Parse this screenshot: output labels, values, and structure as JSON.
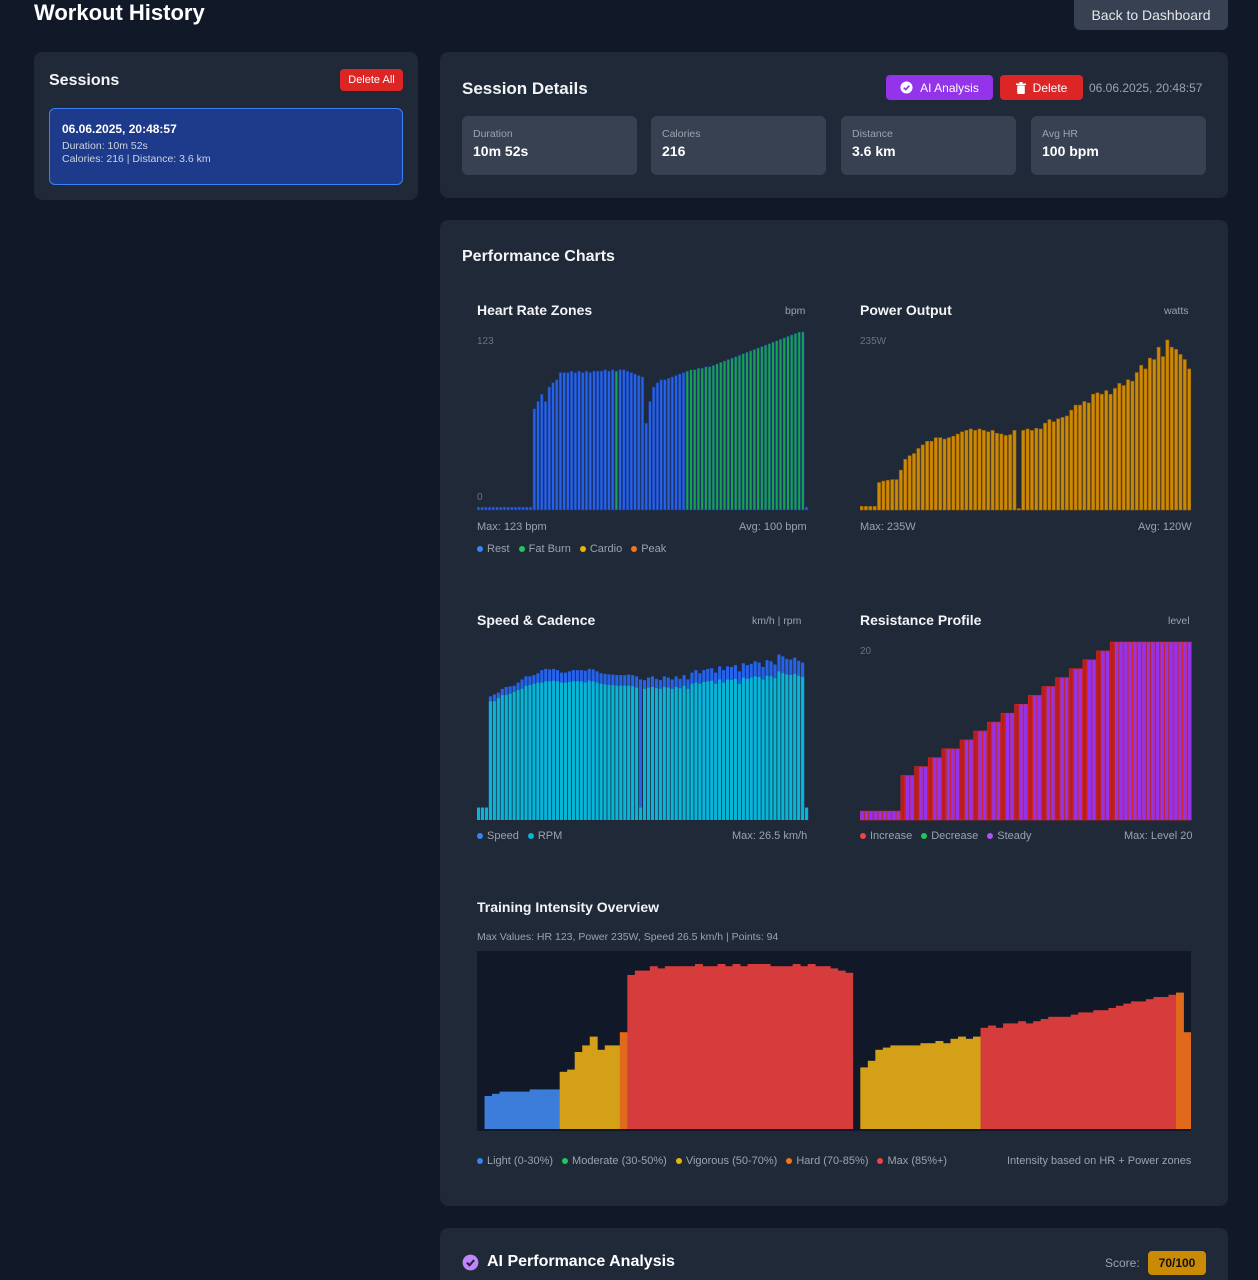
{
  "header": {
    "title": "Workout History",
    "back_label": "Back to Dashboard"
  },
  "sessions": {
    "title": "Sessions",
    "delete_all_label": "Delete All",
    "items": [
      {
        "date": "06.06.2025, 20:48:57",
        "duration": "Duration: 10m 52s",
        "summary": "Calories: 216 | Distance: 3.6 km"
      }
    ]
  },
  "details": {
    "title": "Session Details",
    "ai_label": "AI Analysis",
    "delete_label": "Delete",
    "timestamp": "06.06.2025, 20:48:57",
    "stats": [
      {
        "label": "Duration",
        "value": "10m 52s"
      },
      {
        "label": "Calories",
        "value": "216"
      },
      {
        "label": "Distance",
        "value": "3.6 km"
      },
      {
        "label": "Avg HR",
        "value": "100 bpm"
      }
    ]
  },
  "performance": {
    "title": "Performance Charts",
    "hr": {
      "title": "Heart Rate Zones",
      "unit": "bpm",
      "max_label": "Max: 123 bpm",
      "avg_label": "Avg: 100 bpm",
      "legend": [
        "Rest",
        "Fat Burn",
        "Cardio",
        "Peak"
      ]
    },
    "power": {
      "title": "Power Output",
      "unit": "watts",
      "max_label": "Max: 235W",
      "avg_label": "Avg: 120W"
    },
    "speed": {
      "title": "Speed & Cadence",
      "unit": "km/h | rpm",
      "max_label": "Max: 26.5 km/h",
      "legend": [
        "Speed",
        "RPM"
      ]
    },
    "resistance": {
      "title": "Resistance Profile",
      "unit": "level",
      "max_label": "Max: Level 20",
      "legend": [
        "Increase",
        "Decrease",
        "Steady"
      ]
    },
    "intensity": {
      "title": "Training Intensity Overview",
      "subtitle": "Max Values: HR 123, Power 235W, Speed 26.5 km/h | Points: 94",
      "legend": [
        "Light (0-30%)",
        "Moderate (30-50%)",
        "Vigorous (50-70%)",
        "Hard (70-85%)",
        "Max (85%+)"
      ],
      "note": "Intensity based on HR + Power zones"
    }
  },
  "ai": {
    "title": "AI Performance Analysis",
    "score_label": "Score:",
    "score_value": "70/100"
  },
  "colors": {
    "rest": "#3b82f6",
    "fatburn": "#22c55e",
    "cardio": "#eab308",
    "peak": "#f97316",
    "power": "#ca8a04",
    "speed": "#2563eb",
    "rpm": "#06b6d4",
    "increase": "#ef4444",
    "decrease": "#22c55e",
    "steady": "#a855f7",
    "light": "#3b82f6",
    "moderate": "#22c55e",
    "vigorous": "#eab308",
    "hard": "#f97316",
    "max": "#ef4444"
  },
  "chart_data": [
    {
      "type": "bar",
      "title": "Heart Rate Zones",
      "ylabel": "bpm",
      "ylim": [
        0,
        123
      ],
      "tick_labels": [
        "123",
        "0"
      ],
      "series": [
        {
          "name": "Heart Rate",
          "values": [
            2,
            2,
            2,
            2,
            2,
            2,
            2,
            2,
            2,
            2,
            2,
            2,
            2,
            2,
            2,
            70,
            75,
            80,
            75,
            85,
            88,
            90,
            95,
            95,
            95,
            96,
            95,
            96,
            95,
            96,
            95,
            96,
            96,
            96,
            97,
            96,
            97,
            96,
            97,
            97,
            96,
            95,
            94,
            93,
            92,
            60,
            75,
            85,
            88,
            90,
            90,
            91,
            92,
            93,
            94,
            95,
            96,
            97,
            97,
            98,
            98,
            99,
            99,
            100,
            101,
            102,
            103,
            104,
            105,
            106,
            107,
            108,
            109,
            110,
            111,
            112,
            113,
            114,
            115,
            116,
            117,
            118,
            119,
            120,
            121,
            122,
            123,
            123,
            2
          ]
        }
      ],
      "zones": [
        "rest",
        "rest",
        "rest",
        "rest",
        "rest",
        "rest",
        "rest",
        "rest",
        "rest",
        "rest",
        "rest",
        "rest",
        "rest",
        "rest",
        "rest",
        "rest",
        "rest",
        "rest",
        "rest",
        "rest",
        "rest",
        "rest",
        "rest",
        "rest",
        "rest",
        "rest",
        "rest",
        "rest",
        "rest",
        "rest",
        "rest",
        "rest",
        "rest",
        "rest",
        "rest",
        "rest",
        "rest",
        "fatburn",
        "rest",
        "rest",
        "rest",
        "rest",
        "rest",
        "rest",
        "rest",
        "rest",
        "rest",
        "rest",
        "rest",
        "rest",
        "rest",
        "rest",
        "rest",
        "rest",
        "rest",
        "rest",
        "fatburn",
        "fatburn",
        "fatburn",
        "fatburn",
        "fatburn",
        "fatburn",
        "fatburn",
        "fatburn",
        "fatburn",
        "fatburn",
        "fatburn",
        "fatburn",
        "fatburn",
        "fatburn",
        "fatburn",
        "fatburn",
        "fatburn",
        "fatburn",
        "fatburn",
        "fatburn",
        "fatburn",
        "fatburn",
        "fatburn",
        "fatburn",
        "fatburn",
        "fatburn",
        "fatburn",
        "fatburn",
        "fatburn",
        "fatburn",
        "fatburn",
        "fatburn",
        "rest"
      ]
    },
    {
      "type": "bar",
      "title": "Power Output",
      "ylabel": "watts",
      "ylim": [
        0,
        235
      ],
      "tick_labels": [
        "235W"
      ],
      "series": [
        {
          "name": "Power",
          "values": [
            5,
            5,
            5,
            5,
            38,
            40,
            41,
            42,
            42,
            55,
            70,
            75,
            78,
            85,
            90,
            95,
            95,
            100,
            100,
            98,
            100,
            102,
            105,
            108,
            110,
            112,
            110,
            112,
            110,
            108,
            110,
            106,
            105,
            103,
            104,
            110,
            2,
            110,
            112,
            110,
            113,
            112,
            120,
            125,
            122,
            126,
            128,
            130,
            138,
            145,
            145,
            150,
            148,
            160,
            162,
            160,
            165,
            160,
            168,
            175,
            172,
            180,
            178,
            190,
            200,
            195,
            210,
            208,
            225,
            212,
            235,
            225,
            222,
            215,
            208,
            195
          ]
        }
      ]
    },
    {
      "type": "bar",
      "title": "Speed & Cadence",
      "ylabel": "km/h | rpm",
      "series": [
        {
          "name": "Speed",
          "values": [
            2,
            2,
            2,
            19.8,
            20.1,
            20.4,
            21,
            21.3,
            21.4,
            21.5,
            22,
            22.5,
            23,
            23,
            23.2,
            23.5,
            24,
            24.2,
            24.1,
            24.2,
            24,
            23.6,
            23.6,
            23.8,
            24,
            24,
            24,
            23.9,
            24.2,
            24.1,
            23.8,
            23.5,
            23.4,
            23.3,
            23.3,
            23.2,
            23.2,
            23.2,
            23.3,
            23.2,
            23,
            22.5,
            22.4,
            22.8,
            23,
            22.6,
            22.4,
            23,
            22.8,
            22.5,
            23,
            22.6,
            23.2,
            22.5,
            23.6,
            24,
            23.5,
            24,
            24.2,
            24.3,
            23.6,
            24.6,
            24,
            24.6,
            24.5,
            24.8,
            23.8,
            25.1,
            24.8,
            25,
            25.4,
            25.2,
            24.5,
            25.6,
            25.4,
            24.9,
            26.5,
            26.2,
            25.8,
            25.7,
            26,
            25.5,
            25.2,
            2
          ]
        },
        {
          "name": "RPM",
          "values": [
            2,
            2,
            2,
            19,
            19,
            19.5,
            20,
            20,
            20.2,
            20.5,
            20.8,
            21,
            21.5,
            21.6,
            21.8,
            22,
            22,
            22.2,
            22.2,
            22.3,
            22.2,
            22,
            22,
            22.1,
            22.2,
            22.2,
            22.2,
            22,
            22.3,
            22.2,
            22,
            21.8,
            21.7,
            21.6,
            21.6,
            21.5,
            21.5,
            21.5,
            21.5,
            21.4,
            21.2,
            2,
            21,
            21.2,
            21.3,
            21.1,
            21,
            21.3,
            21.2,
            21,
            21.3,
            21.1,
            21.5,
            21,
            21.8,
            22,
            21.8,
            22.1,
            22.2,
            22.3,
            21.8,
            22.5,
            22,
            22.5,
            22.4,
            22.6,
            21.8,
            22.8,
            22.6,
            22.8,
            23,
            22.9,
            22.5,
            23.1,
            23,
            22.7,
            23.8,
            23.5,
            23.3,
            23.2,
            23.4,
            23.1,
            22.9,
            2
          ]
        }
      ]
    },
    {
      "type": "bar",
      "title": "Resistance Profile",
      "ylabel": "level",
      "ylim": [
        0,
        20
      ],
      "tick_labels": [
        "20"
      ],
      "series": [
        {
          "name": "Resistance",
          "values": [
            1,
            1,
            1,
            1,
            1,
            1,
            1,
            1,
            1,
            5,
            5,
            5,
            6,
            6,
            6,
            7,
            7,
            7,
            8,
            8,
            8,
            8,
            9,
            9,
            9,
            10,
            10,
            10,
            11,
            11,
            11,
            12,
            12,
            12,
            13,
            13,
            13,
            14,
            14,
            14,
            15,
            15,
            15,
            16,
            16,
            16,
            17,
            17,
            17,
            18,
            18,
            18,
            19,
            19,
            19,
            20,
            20,
            20,
            20,
            20,
            20,
            20,
            20,
            20,
            20,
            20,
            20,
            20,
            20,
            20,
            20,
            20,
            20
          ]
        }
      ]
    },
    {
      "type": "bar",
      "title": "Training Intensity Overview",
      "series": [
        {
          "name": "Intensity",
          "values": [
            0,
            15,
            16,
            17,
            17,
            17,
            17,
            18,
            18,
            18,
            18,
            26,
            27,
            35,
            38,
            42,
            36,
            38,
            38,
            44,
            70,
            72,
            72,
            74,
            73,
            74,
            74,
            74,
            74,
            75,
            74,
            74,
            75,
            74,
            75,
            74,
            75,
            75,
            75,
            74,
            74,
            74,
            75,
            74,
            75,
            74,
            74,
            73,
            72,
            71,
            0,
            28,
            31,
            36,
            37,
            38,
            38,
            38,
            38,
            39,
            39,
            40,
            39,
            41,
            42,
            41,
            42,
            46,
            47,
            46,
            48,
            48,
            49,
            48,
            49,
            50,
            51,
            51,
            51,
            52,
            53,
            53,
            54,
            54,
            55,
            56,
            57,
            58,
            58,
            59,
            60,
            60,
            61,
            62,
            44
          ]
        }
      ]
    }
  ]
}
